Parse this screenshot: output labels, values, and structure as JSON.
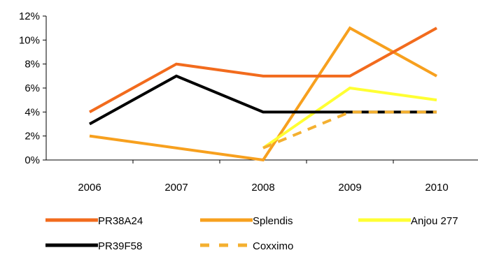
{
  "chart_data": {
    "type": "line",
    "title": "",
    "xlabel": "",
    "ylabel": "",
    "categories": [
      "2006",
      "2007",
      "2008",
      "2009",
      "2010"
    ],
    "ylim": [
      0,
      12
    ],
    "y_ticks": [
      "0%",
      "2%",
      "4%",
      "6%",
      "8%",
      "10%",
      "12%"
    ],
    "y_tick_values": [
      0,
      2,
      4,
      6,
      8,
      10,
      12
    ],
    "grid": false,
    "legend_position": "bottom",
    "series": [
      {
        "name": "PR38A24",
        "values": [
          4,
          8,
          7,
          7,
          11
        ],
        "color": "#F26B1D",
        "dash": "solid"
      },
      {
        "name": "Splendis",
        "values": [
          2,
          null,
          0,
          11,
          7
        ],
        "color": "#F7A01E",
        "dash": "solid"
      },
      {
        "name": "Anjou 277",
        "values": [
          null,
          null,
          1,
          6,
          5
        ],
        "color": "#FFFF33",
        "dash": "solid"
      },
      {
        "name": "PR39F58",
        "values": [
          3,
          7,
          4,
          4,
          4
        ],
        "color": "#000000",
        "dash": "solid"
      },
      {
        "name": "Coxximo",
        "values": [
          null,
          null,
          1,
          4,
          4
        ],
        "color": "#F4B030",
        "dash": "dashed"
      }
    ]
  }
}
